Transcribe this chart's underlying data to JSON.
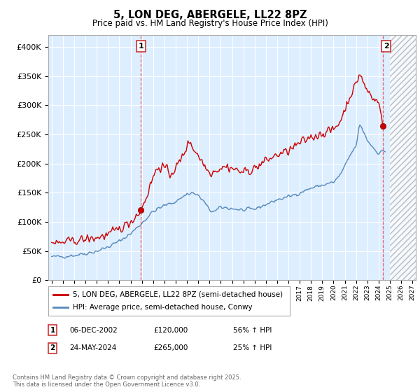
{
  "title": "5, LON DEG, ABERGELE, LL22 8PZ",
  "subtitle": "Price paid vs. HM Land Registry's House Price Index (HPI)",
  "red_label": "5, LON DEG, ABERGELE, LL22 8PZ (semi-detached house)",
  "blue_label": "HPI: Average price, semi-detached house, Conwy",
  "transaction1_date": "06-DEC-2002",
  "transaction1_price": 120000,
  "transaction1_hpi": "56% ↑ HPI",
  "transaction1_label": "1",
  "transaction2_date": "24-MAY-2024",
  "transaction2_price": 265000,
  "transaction2_hpi": "25% ↑ HPI",
  "transaction2_label": "2",
  "footnote": "Contains HM Land Registry data © Crown copyright and database right 2025.\nThis data is licensed under the Open Government Licence v3.0.",
  "red_color": "#cc0000",
  "blue_color": "#5588bb",
  "vline_color": "#ee4444",
  "chart_bg_color": "#ddeeff",
  "future_bg_color": "#eeeeee",
  "grid_color": "#ffffff",
  "ylim": [
    0,
    420000
  ],
  "xlim_start": 1994.7,
  "xlim_end": 2027.3,
  "future_start": 2025.0,
  "t1_x": 2002.92,
  "t1_y": 120000,
  "t2_x": 2024.38,
  "t2_y": 265000
}
